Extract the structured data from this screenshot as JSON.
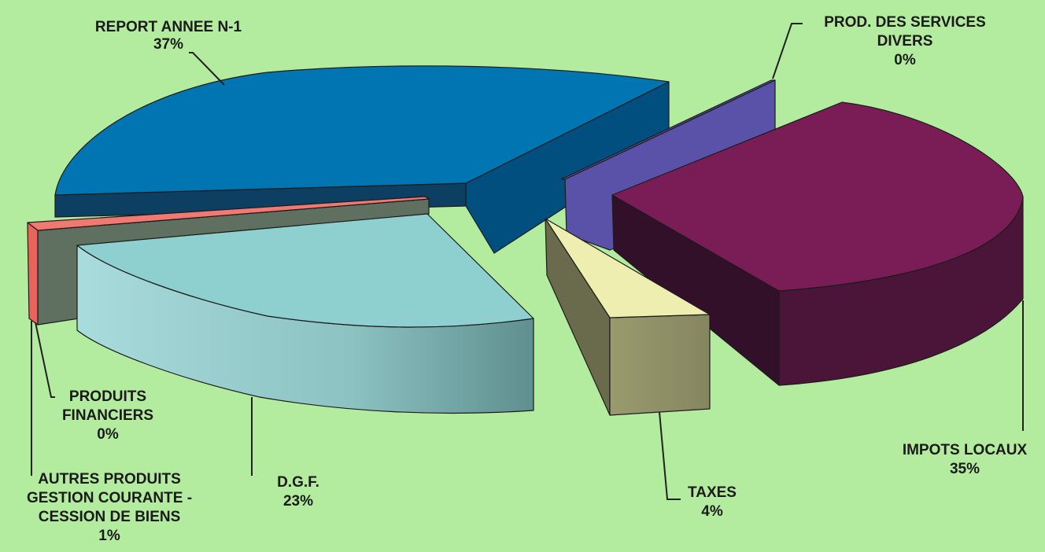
{
  "chart_data": {
    "type": "pie",
    "style": "3d-exploded",
    "title": "",
    "slices": [
      {
        "label": [
          "REPORT ANNEE N-1"
        ],
        "value": 37,
        "display": "37%",
        "color": "#0075b2"
      },
      {
        "label": [
          "PROD. DES SERVICES",
          "DIVERS"
        ],
        "value": 0,
        "display": "0%",
        "color": "#5a52a8"
      },
      {
        "label": [
          "IMPOTS LOCAUX"
        ],
        "value": 35,
        "display": "35%",
        "color": "#7a1c56"
      },
      {
        "label": [
          "TAXES"
        ],
        "value": 4,
        "display": "4%",
        "color": "#eeeeb0"
      },
      {
        "label": [
          "D.G.F."
        ],
        "value": 23,
        "display": "23%",
        "color": "#8ed0d0"
      },
      {
        "label": [
          "PRODUITS",
          "FINANCIERS"
        ],
        "value": 0,
        "display": "0%",
        "color": "#5f7060"
      },
      {
        "label": [
          "AUTRES PRODUITS",
          "GESTION COURANTE -",
          "CESSION DE BIENS"
        ],
        "value": 1,
        "display": "1%",
        "color": "#f07a72"
      }
    ]
  }
}
